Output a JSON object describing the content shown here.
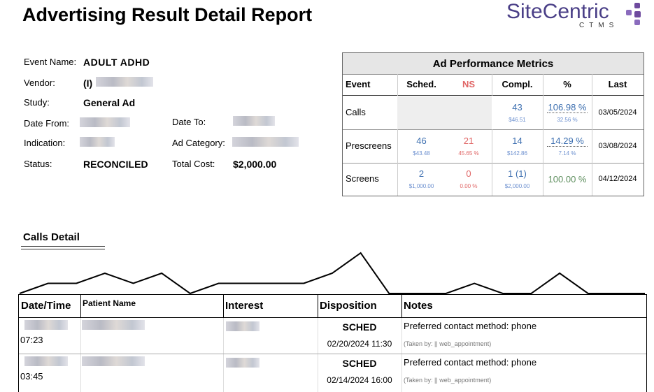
{
  "header": {
    "title": "Advertising Result Detail Report",
    "logo": "SiteCentric",
    "logo_sub": "CTMS"
  },
  "info": {
    "event_name_label": "Event Name:",
    "event_name": "ADULT ADHD",
    "vendor_label": "Vendor:",
    "vendor": "(I)",
    "study_label": "Study:",
    "study": "General Ad",
    "date_from_label": "Date From:",
    "date_to_label": "Date To:",
    "indication_label": "Indication:",
    "ad_category_label": "Ad Category:",
    "status_label": "Status:",
    "status": "RECONCILED",
    "total_cost_label": "Total Cost:",
    "total_cost": "$2,000.00"
  },
  "metrics": {
    "title": "Ad Performance Metrics",
    "headers": [
      "Event",
      "Sched.",
      "NS",
      "Compl.",
      "%",
      "Last"
    ],
    "rows": [
      {
        "event": "Calls",
        "compl": "43",
        "compl_cost": "$46.51",
        "pct": "106.98 %",
        "pct2": "32.56 %",
        "last": "03/05/2024"
      },
      {
        "event": "Prescreens",
        "sched": "46",
        "sched_cost": "$43.48",
        "ns": "21",
        "ns_pct": "45.65 %",
        "compl": "14",
        "compl_cost": "$142.86",
        "pct": "14.29 %",
        "pct2": "7.14 %",
        "last": "03/08/2024"
      },
      {
        "event": "Screens",
        "sched": "2",
        "sched_cost": "$1,000.00",
        "ns": "0",
        "ns_pct": "0.00 %",
        "compl": "1 (1)",
        "compl_cost": "$2,000.00",
        "pct": "100.00 %",
        "last": "04/12/2024"
      }
    ]
  },
  "calls_detail": {
    "title": "Calls Detail",
    "sparkline": [
      0,
      1,
      1,
      2,
      1,
      2,
      0,
      1,
      1,
      1,
      1,
      2,
      4,
      0,
      0,
      0,
      1,
      0,
      0,
      2,
      0,
      0,
      0
    ],
    "headers": [
      "Date/Time",
      "Patient Name",
      "Interest",
      "Disposition",
      "Notes"
    ],
    "rows": [
      {
        "time": "07:23",
        "disposition": "SCHED",
        "disposition_date": "02/20/2024 11:30",
        "notes": "Preferred contact method: phone",
        "taken_by": "(Taken by: || web_appointment)"
      },
      {
        "time": "03:45",
        "disposition": "SCHED",
        "disposition_date": "02/14/2024 16:00",
        "notes": "Preferred contact method: phone",
        "taken_by": "(Taken by: || web_appointment)"
      }
    ]
  }
}
